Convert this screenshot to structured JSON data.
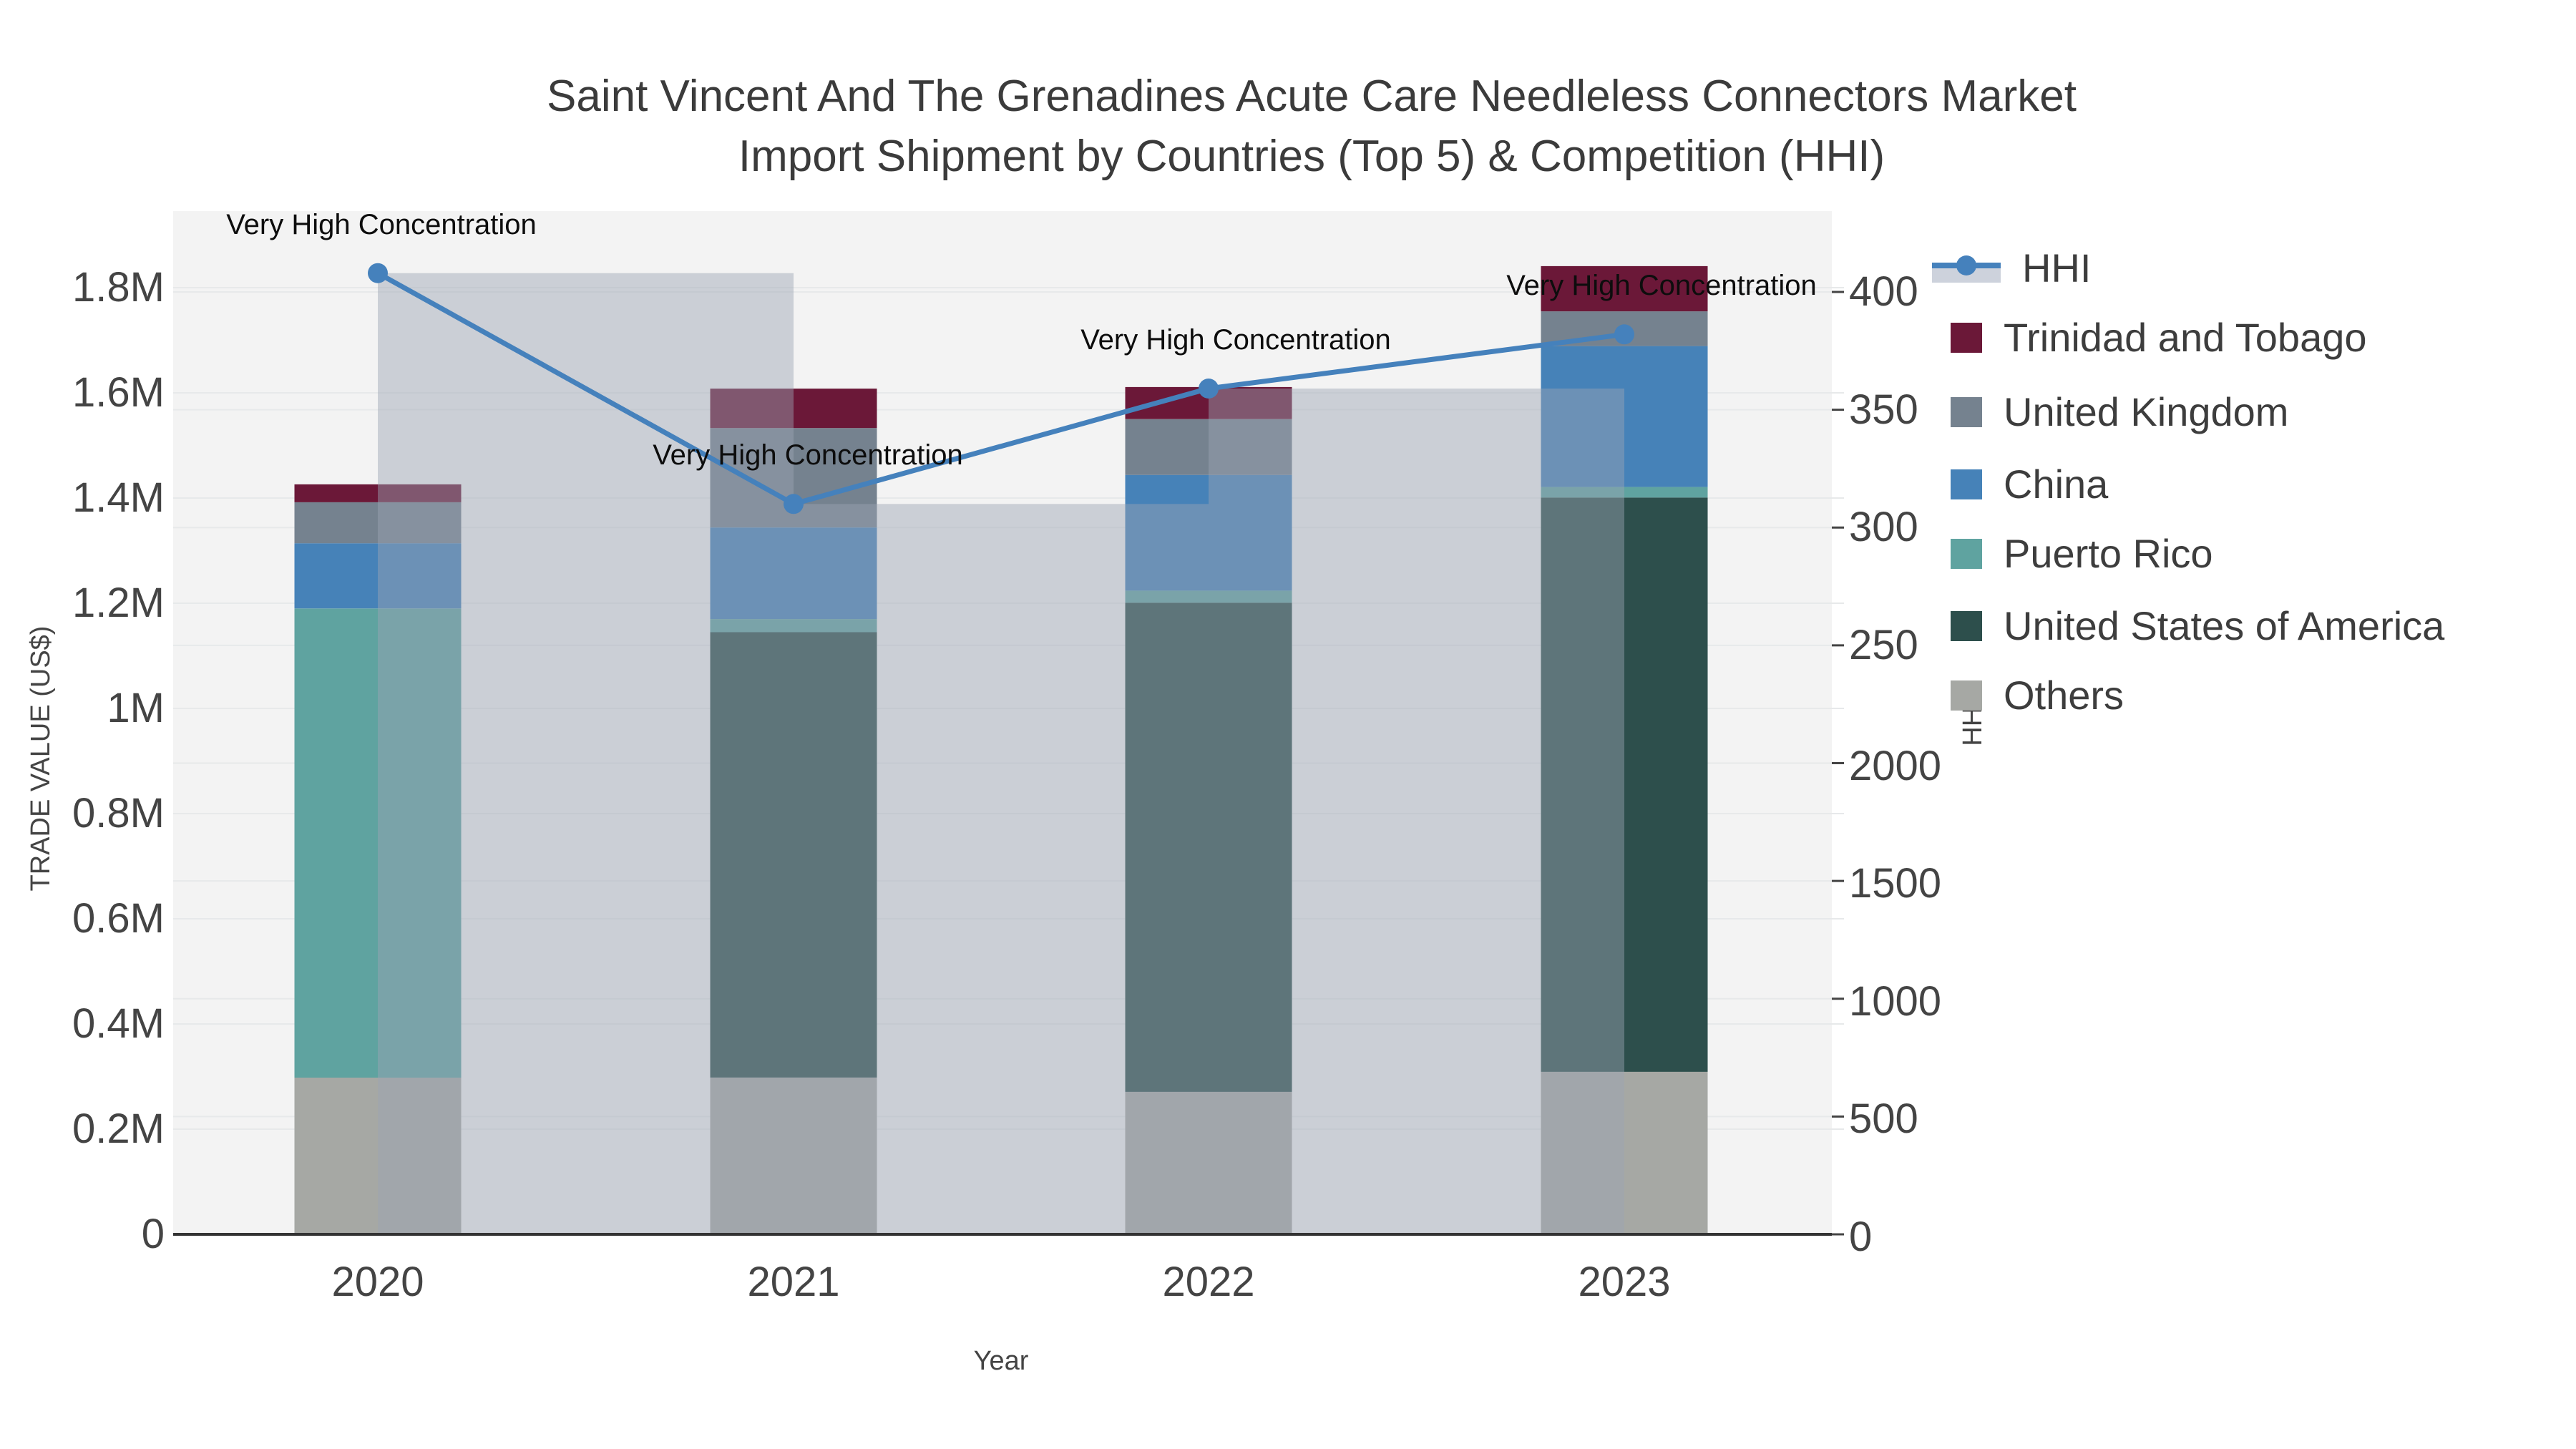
{
  "title": {
    "line1": "Saint Vincent And The Grenadines Acute Care Needleless Connectors Market",
    "line2": "Import Shipment by Countries (Top 5) & Competition (HHI)"
  },
  "axes": {
    "xlabel": "Year",
    "ylabel": "TRADE VALUE (US$)",
    "y2label": "HHI"
  },
  "legend": {
    "items": [
      {
        "label": "HHI",
        "color": "#4581bc",
        "type": "line"
      },
      {
        "label": "Trinidad and Tobago",
        "color": "#6b1838",
        "type": "bar"
      },
      {
        "label": "United Kingdom",
        "color": "#75828f",
        "type": "bar"
      },
      {
        "label": "China",
        "color": "#4682b8",
        "type": "bar"
      },
      {
        "label": "Puerto Rico",
        "color": "#5fa3a0",
        "type": "bar"
      },
      {
        "label": "United States of America",
        "color": "#2d4f4c",
        "type": "bar"
      },
      {
        "label": "Others",
        "color": "#a6a8a4",
        "type": "bar"
      }
    ]
  },
  "chart_data": {
    "type": "bar",
    "subtype": "stacked-bar-with-line",
    "categories": [
      "2020",
      "2021",
      "2022",
      "2023"
    ],
    "series": [
      {
        "name": "Others",
        "color": "#a6a8a4",
        "values_musd": [
          0.298,
          0.298,
          0.271,
          0.309
        ]
      },
      {
        "name": "United States of America",
        "color": "#2d4f4c",
        "values_musd": [
          0.0,
          0.847,
          0.93,
          1.092
        ]
      },
      {
        "name": "Puerto Rico",
        "color": "#5fa3a0",
        "values_musd": [
          0.892,
          0.025,
          0.023,
          0.02
        ]
      },
      {
        "name": "China",
        "color": "#4682b8",
        "values_musd": [
          0.124,
          0.174,
          0.22,
          0.268
        ]
      },
      {
        "name": "United Kingdom",
        "color": "#75828f",
        "values_musd": [
          0.078,
          0.189,
          0.106,
          0.066
        ]
      },
      {
        "name": "Trinidad and Tobago",
        "color": "#6b1838",
        "values_musd": [
          0.034,
          0.075,
          0.061,
          0.086
        ]
      }
    ],
    "totals_musd": [
      1.426,
      1.608,
      1.611,
      1.841
    ],
    "hhi": {
      "name": "HHI",
      "values": [
        4080,
        3100,
        3590,
        3820
      ],
      "line_color": "#4581bc",
      "bar_fill": "rgba(155,163,180,0.45)",
      "annotation_text": "Very High Concentration"
    },
    "annotations": [
      "Very High Concentration",
      "Very High Concentration",
      "Very High Concentration",
      "Very High Concentration"
    ],
    "left_axis_ticks": [
      "0",
      "0.2M",
      "0.4M",
      "0.6M",
      "0.8M",
      "1M",
      "1.2M",
      "1.4M",
      "1.6M",
      "1.8M"
    ],
    "right_axis_ticks_upper": [
      "400",
      "350",
      "300",
      "250"
    ],
    "right_axis_ticks_lower": [
      "2000",
      "1500",
      "1000",
      "500",
      "0"
    ],
    "ylim_musd": [
      0,
      1.945
    ],
    "y2lim_hhi_displayed": [
      0,
      4330
    ],
    "grid": true,
    "legend_position": "right",
    "plot_bg": "#f3f3f3",
    "grid_color": "#e7e9ea",
    "axis_line_color": "#333333"
  }
}
